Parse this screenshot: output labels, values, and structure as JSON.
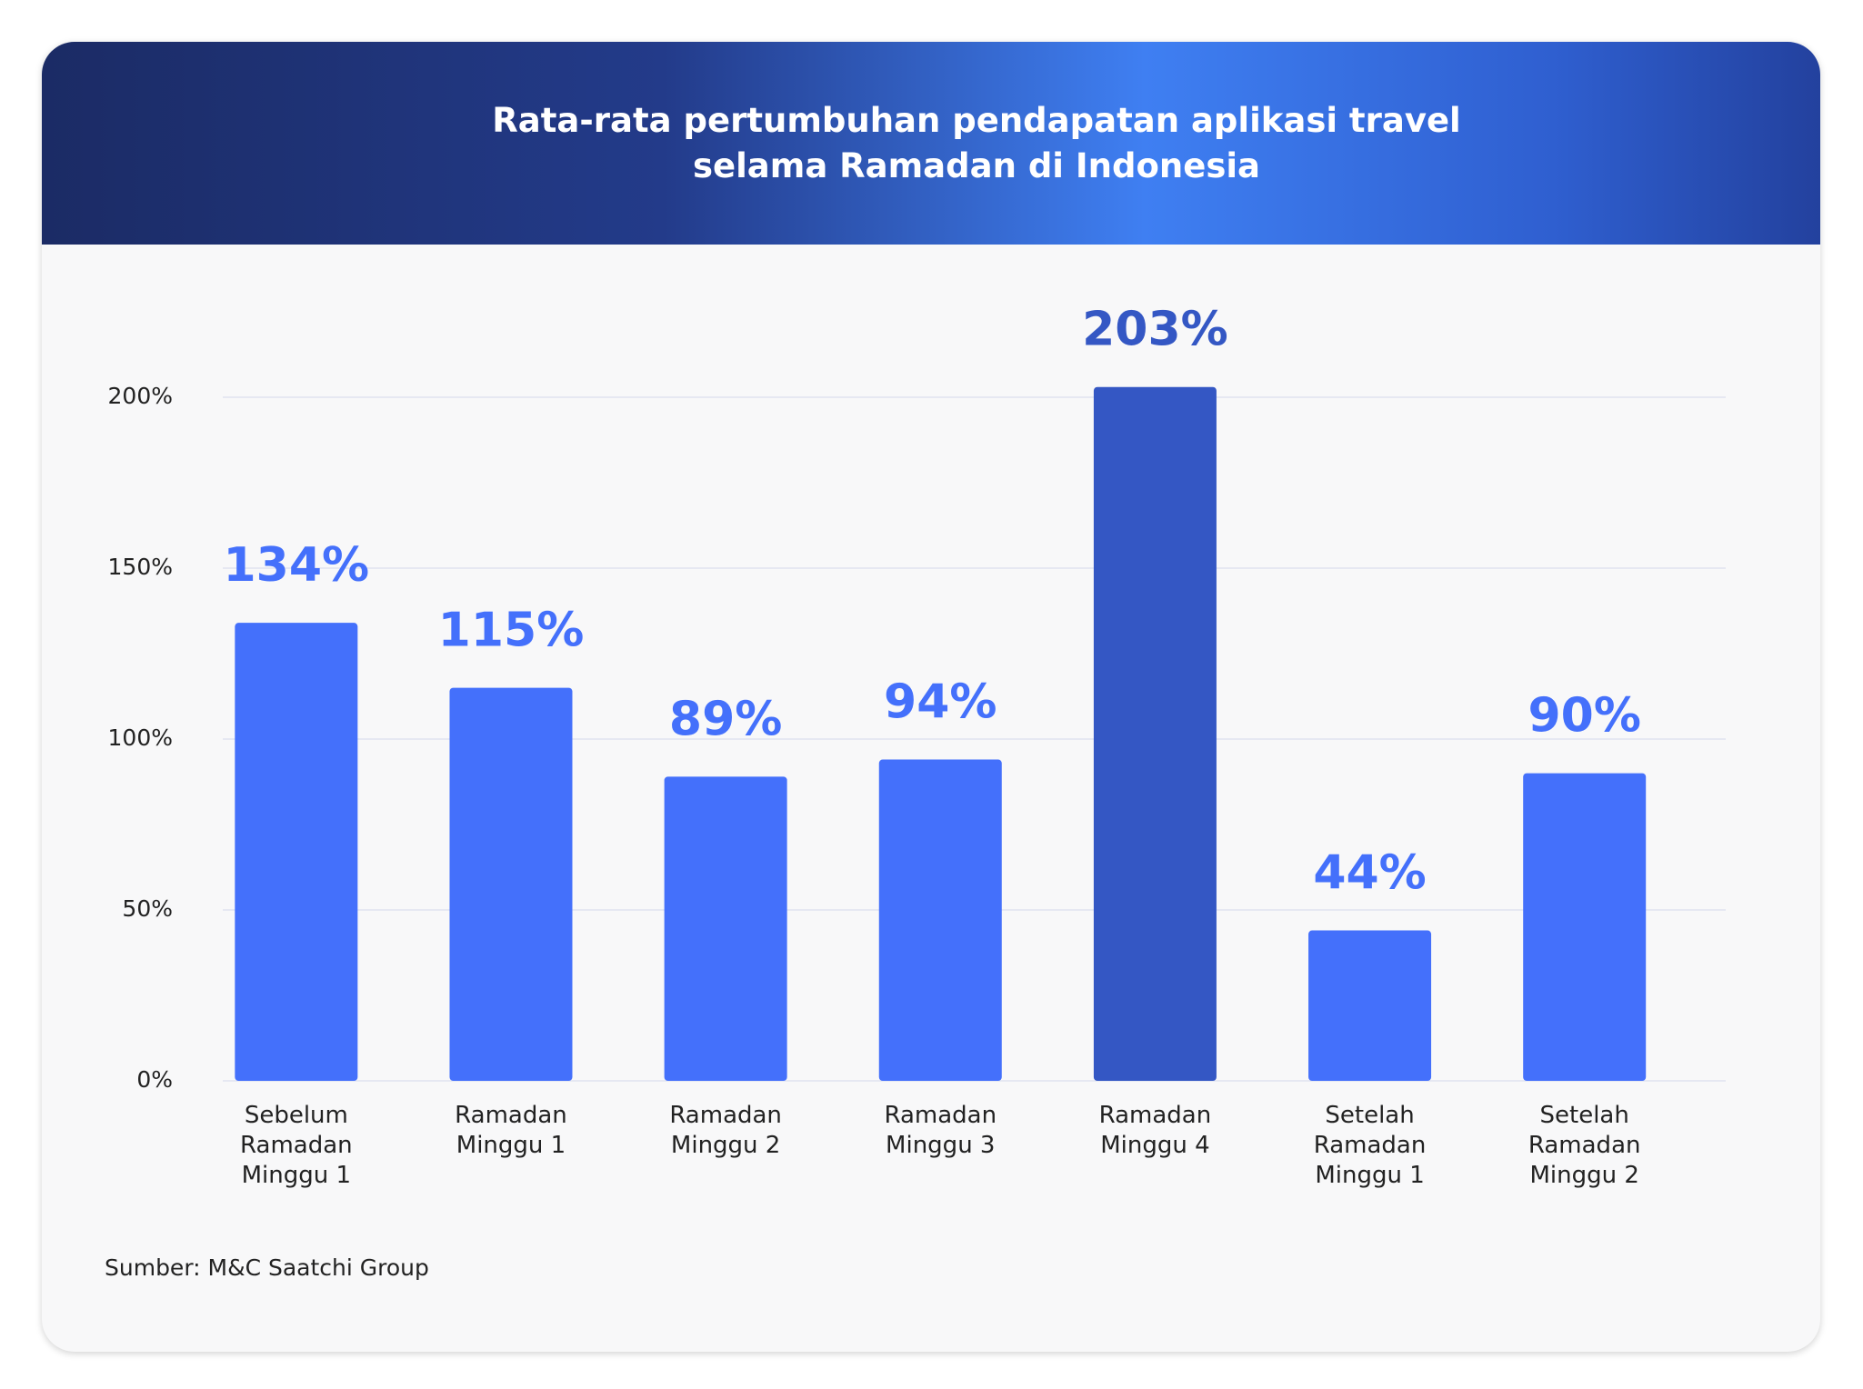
{
  "chart_data": {
    "type": "bar",
    "title": "Rata-rata pertumbuhan pendapatan aplikasi travel selama Ramadan di Indonesia",
    "categories": [
      "Sebelum Ramadan Minggu 1",
      "Ramadan Minggu 1",
      "Ramadan Minggu 2",
      "Ramadan Minggu 3",
      "Ramadan Minggu 4",
      "Setelah Ramadan Minggu 1",
      "Setelah Ramadan Minggu 2"
    ],
    "values": [
      134,
      115,
      89,
      94,
      203,
      44,
      90
    ],
    "value_labels": [
      "134%",
      "115%",
      "89%",
      "94%",
      "203%",
      "44%",
      "90%"
    ],
    "colors": [
      "#4470fb",
      "#4470fb",
      "#4470fb",
      "#4470fb",
      "#3457c4",
      "#4470fb",
      "#4470fb"
    ],
    "ylim": [
      0,
      200
    ],
    "yticks": [
      {
        "value": 0,
        "label": "0%"
      },
      {
        "value": 50,
        "label": "50%"
      },
      {
        "value": 100,
        "label": "100%"
      },
      {
        "value": 150,
        "label": "150%"
      },
      {
        "value": 200,
        "label": "200%"
      }
    ],
    "grid": true,
    "source": "Sumber: M&C Saatchi Group"
  }
}
